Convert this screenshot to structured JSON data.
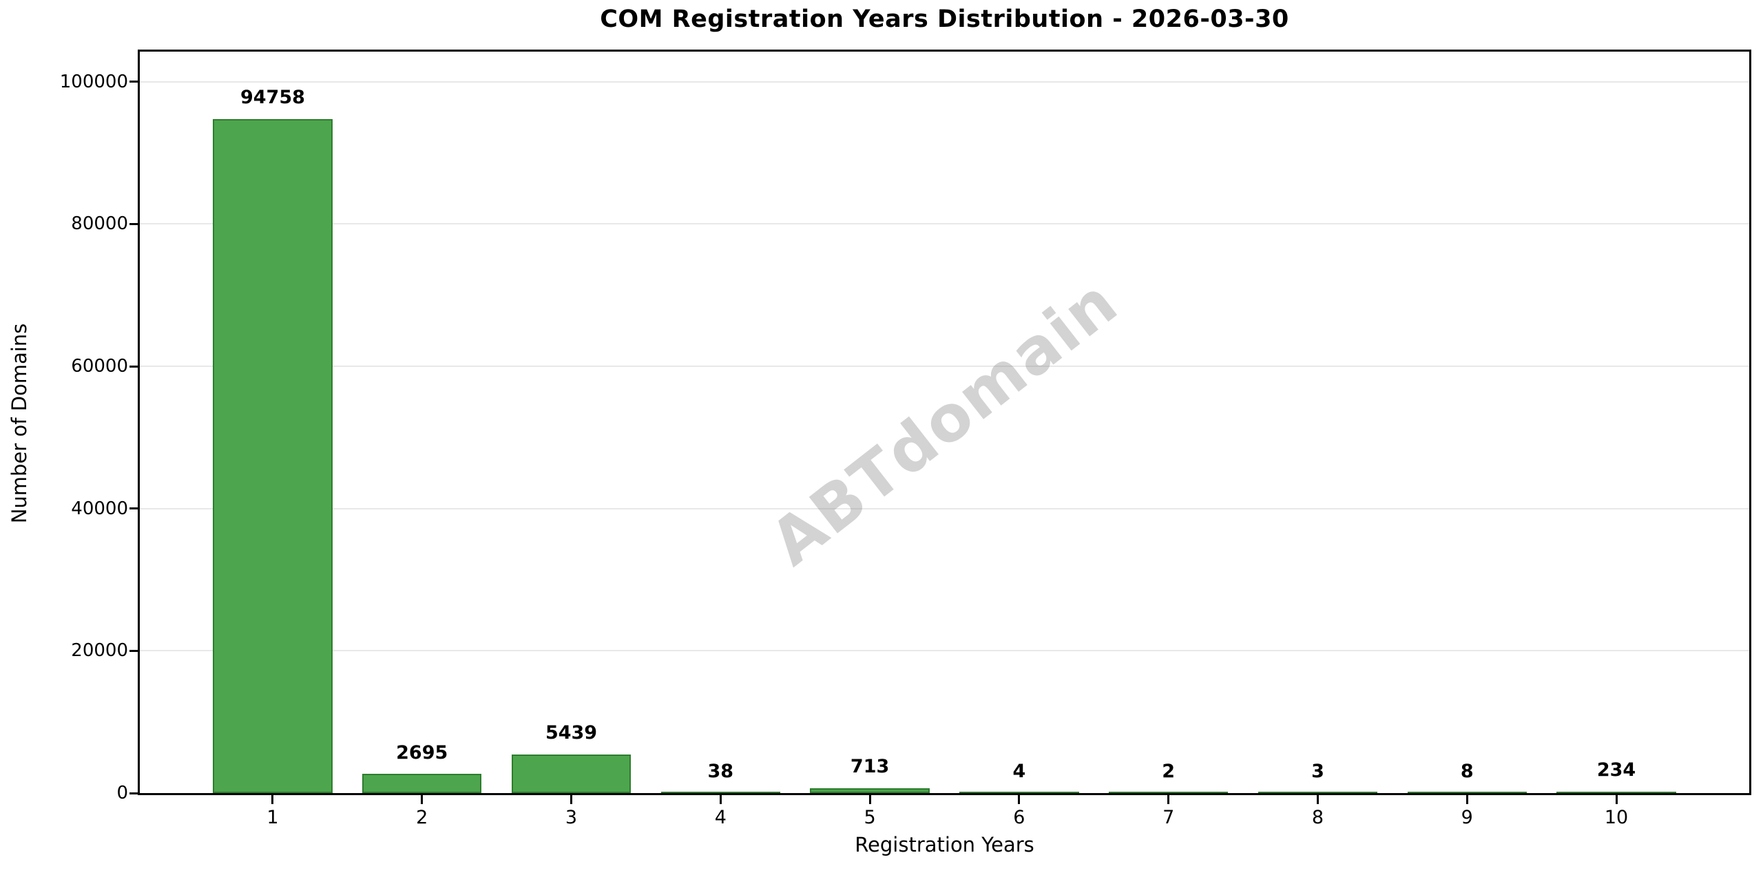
{
  "chart_data": {
    "type": "bar",
    "title": "COM Registration Years Distribution - 2026-03-30",
    "xlabel": "Registration Years",
    "ylabel": "Number of Domains",
    "categories": [
      "1",
      "2",
      "3",
      "4",
      "5",
      "6",
      "7",
      "8",
      "9",
      "10"
    ],
    "values": [
      94758,
      2695,
      5439,
      38,
      713,
      4,
      2,
      3,
      8,
      234
    ],
    "value_labels": [
      "94758",
      "2695",
      "5439",
      "38",
      "713",
      "4",
      "2",
      "3",
      "8",
      "234"
    ],
    "yticks": [
      0,
      20000,
      40000,
      60000,
      80000,
      100000
    ],
    "ytick_labels": [
      "0",
      "20000",
      "40000",
      "60000",
      "80000",
      "100000"
    ],
    "ylim": [
      0,
      104234
    ],
    "grid": true,
    "legend": "none",
    "watermark": "ABTdomain",
    "bar_color": "#4da64d",
    "bar_edge_color": "#2e7d2e",
    "gridline_color": "#e8e8e8",
    "text_color": "#000000",
    "background_color": "#ffffff"
  }
}
